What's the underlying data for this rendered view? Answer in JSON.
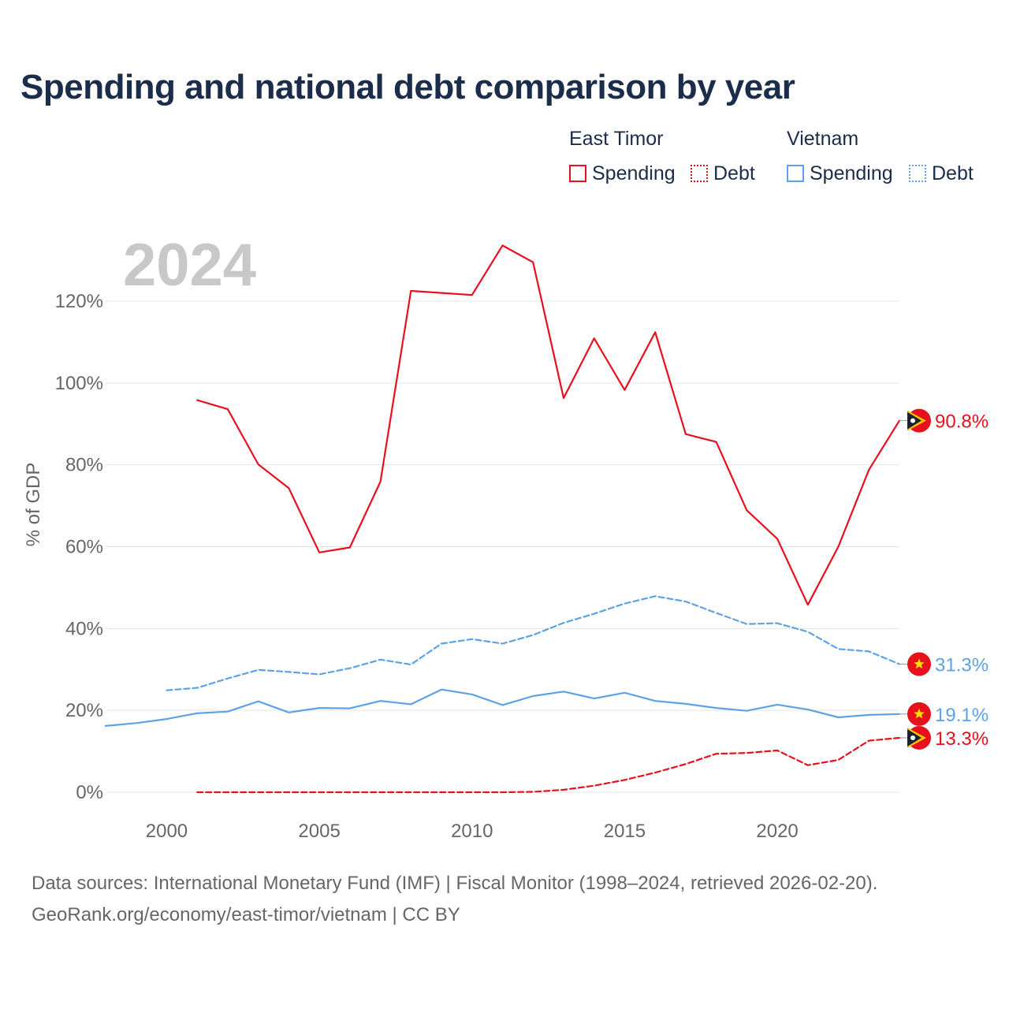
{
  "chart_data": {
    "type": "line",
    "title": "Spending and national debt comparison by year",
    "year_badge": "2024",
    "ylabel": "% of GDP",
    "xlabel": "",
    "xlim": [
      1998,
      2024
    ],
    "ylim": [
      -2,
      135
    ],
    "x_ticks": [
      2000,
      2005,
      2010,
      2015,
      2020
    ],
    "y_ticks": [
      0,
      20,
      40,
      60,
      80,
      100,
      120
    ],
    "y_tick_labels": [
      "0%",
      "20%",
      "40%",
      "60%",
      "80%",
      "100%",
      "120%"
    ],
    "legend": {
      "groups": [
        {
          "title": "East Timor",
          "items": [
            {
              "label": "Spending",
              "style": "solid",
              "color": "#e8101c"
            },
            {
              "label": "Debt",
              "style": "dotted",
              "color": "#e8101c"
            }
          ]
        },
        {
          "title": "Vietnam",
          "items": [
            {
              "label": "Spending",
              "style": "solid",
              "color": "#5ba3e6"
            },
            {
              "label": "Debt",
              "style": "dotted",
              "color": "#5ba3e6"
            }
          ]
        }
      ]
    },
    "series": [
      {
        "name": "East Timor Spending",
        "country": "East Timor",
        "color": "#e8101c",
        "dash": "solid",
        "x": [
          2001,
          2002,
          2003,
          2004,
          2005,
          2006,
          2007,
          2008,
          2009,
          2010,
          2011,
          2012,
          2013,
          2014,
          2015,
          2016,
          2017,
          2018,
          2019,
          2020,
          2021,
          2022,
          2023,
          2024
        ],
        "values": [
          95.8,
          93.6,
          80.1,
          74.3,
          58.6,
          59.8,
          75.9,
          122.5,
          122.0,
          121.5,
          133.6,
          129.5,
          96.3,
          110.9,
          98.3,
          112.4,
          87.5,
          85.6,
          68.9,
          61.9,
          45.8,
          60.0,
          78.8,
          90.8
        ],
        "end_label": "90.8%"
      },
      {
        "name": "East Timor Debt",
        "country": "East Timor",
        "color": "#e8101c",
        "dash": "dashed",
        "x": [
          2001,
          2002,
          2003,
          2004,
          2005,
          2006,
          2007,
          2008,
          2009,
          2010,
          2011,
          2012,
          2013,
          2014,
          2015,
          2016,
          2017,
          2018,
          2019,
          2020,
          2021,
          2022,
          2023,
          2024
        ],
        "values": [
          0,
          0,
          0,
          0,
          0,
          0,
          0,
          0,
          0,
          0,
          0,
          0.1,
          0.6,
          1.6,
          3.0,
          4.8,
          6.9,
          9.4,
          9.6,
          10.2,
          6.6,
          7.9,
          12.6,
          13.3
        ],
        "end_label": "13.3%"
      },
      {
        "name": "Vietnam Spending",
        "country": "Vietnam",
        "color": "#5ba3e6",
        "dash": "solid",
        "x": [
          1998,
          1999,
          2000,
          2001,
          2002,
          2003,
          2004,
          2005,
          2006,
          2007,
          2008,
          2009,
          2010,
          2011,
          2012,
          2013,
          2014,
          2015,
          2016,
          2017,
          2018,
          2019,
          2020,
          2021,
          2022,
          2023,
          2024
        ],
        "values": [
          16.2,
          16.9,
          17.9,
          19.3,
          19.7,
          22.2,
          19.5,
          20.6,
          20.5,
          22.3,
          21.5,
          25.1,
          23.9,
          21.3,
          23.5,
          24.6,
          22.9,
          24.3,
          22.3,
          21.6,
          20.6,
          19.9,
          21.4,
          20.2,
          18.3,
          18.9,
          19.1
        ],
        "end_label": "19.1%"
      },
      {
        "name": "Vietnam Debt",
        "country": "Vietnam",
        "color": "#5ba3e6",
        "dash": "dashed",
        "x": [
          2000,
          2001,
          2002,
          2003,
          2004,
          2005,
          2006,
          2007,
          2008,
          2009,
          2010,
          2011,
          2012,
          2013,
          2014,
          2015,
          2016,
          2017,
          2018,
          2019,
          2020,
          2021,
          2022,
          2023,
          2024
        ],
        "values": [
          24.9,
          25.5,
          27.8,
          29.9,
          29.4,
          28.8,
          30.3,
          32.4,
          31.2,
          36.3,
          37.4,
          36.3,
          38.4,
          41.4,
          43.6,
          46.1,
          47.9,
          46.6,
          43.8,
          41.1,
          41.3,
          39.2,
          35.0,
          34.4,
          31.3
        ],
        "end_label": "31.3%"
      }
    ]
  },
  "footer": {
    "sources": "Data sources: International Monetary Fund (IMF) | Fiscal Monitor (1998–2024, retrieved 2026-02-20).",
    "credit": "GeoRank.org/economy/east-timor/vietnam | CC BY"
  }
}
